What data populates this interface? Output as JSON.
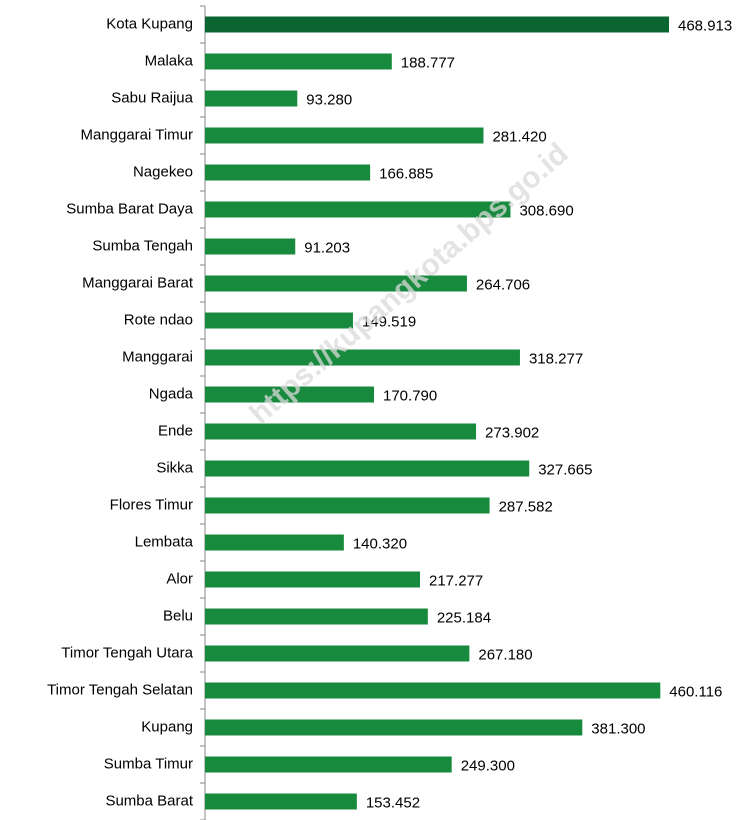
{
  "chart_data": {
    "type": "hbar",
    "watermark": "https://kupangkota.bps.go.id",
    "categories": [
      "Kota Kupang",
      "Malaka",
      "Sabu Raijua",
      "Manggarai Timur",
      "Nagekeo",
      "Sumba Barat Daya",
      "Sumba Tengah",
      "Manggarai Barat",
      "Rote ndao",
      "Manggarai",
      "Ngada",
      "Ende",
      "Sikka",
      "Flores Timur",
      "Lembata",
      "Alor",
      "Belu",
      "Timor Tengah Utara",
      "Timor Tengah Selatan",
      "Kupang",
      "Sumba Timur",
      "Sumba Barat"
    ],
    "values": [
      468913,
      188777,
      93280,
      281420,
      166885,
      308690,
      91203,
      264706,
      149519,
      318277,
      170790,
      273902,
      327665,
      287582,
      140320,
      217277,
      225184,
      267180,
      460116,
      381300,
      249300,
      153452
    ],
    "value_labels": [
      "468.913",
      "188.777",
      "93.280",
      "281.420",
      "166.885",
      "308.690",
      "91.203",
      "264.706",
      "149.519",
      "318.277",
      "170.790",
      "273.902",
      "327.665",
      "287.582",
      "140.320",
      "217.277",
      "225.184",
      "267.180",
      "460.116",
      "381.300",
      "249.300",
      "153.452"
    ],
    "colors": [
      "#0b6531",
      "#178a3d",
      "#178a3d",
      "#178a3d",
      "#178a3d",
      "#178a3d",
      "#178a3d",
      "#178a3d",
      "#178a3d",
      "#178a3d",
      "#178a3d",
      "#178a3d",
      "#178a3d",
      "#178a3d",
      "#178a3d",
      "#178a3d",
      "#178a3d",
      "#178a3d",
      "#178a3d",
      "#178a3d",
      "#178a3d",
      "#178a3d"
    ]
  }
}
